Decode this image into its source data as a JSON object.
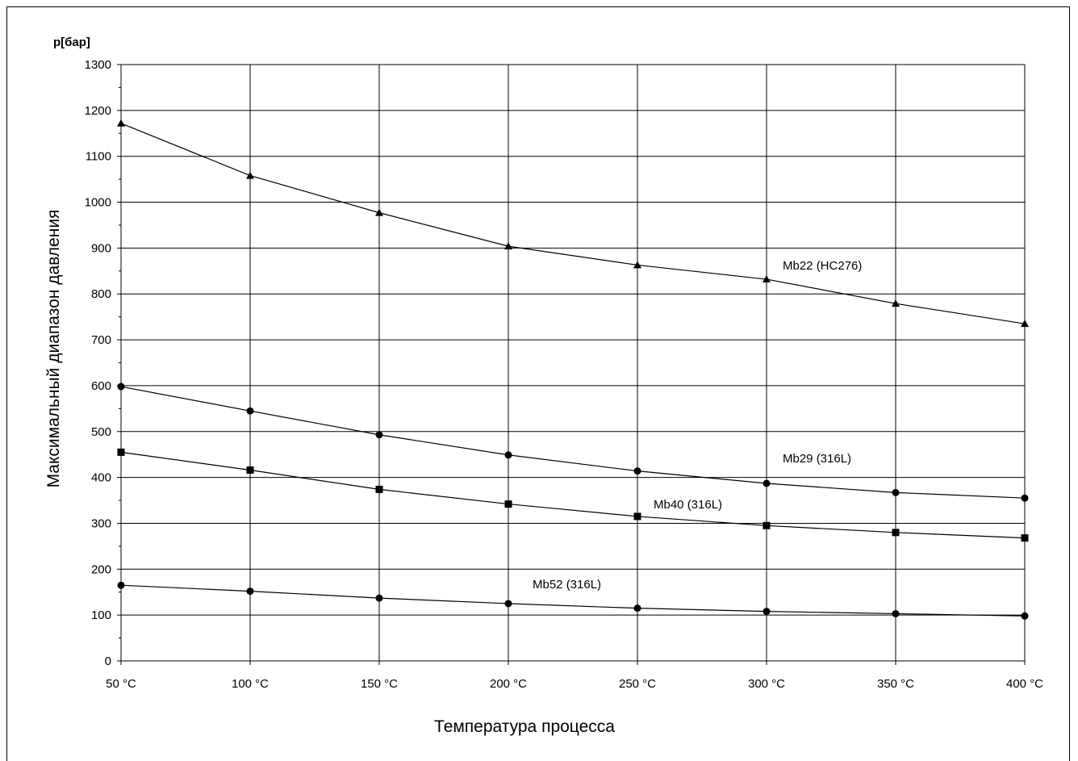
{
  "chart_data": {
    "type": "line",
    "y_unit_label": "p[бар]",
    "ylabel": "Максимальный диапазон давления",
    "xlabel": "Температура процесса",
    "x": [
      50,
      100,
      150,
      200,
      250,
      300,
      350,
      400
    ],
    "x_tick_labels": [
      "50 °C",
      "100 °C",
      "150 °C",
      "200 °C",
      "250 °C",
      "300 °C",
      "350 °C",
      "400 °C"
    ],
    "y_ticks": [
      0,
      100,
      200,
      300,
      400,
      500,
      600,
      700,
      800,
      900,
      1000,
      1100,
      1200,
      1300
    ],
    "xlim": [
      50,
      400
    ],
    "ylim": [
      0,
      1300
    ],
    "grid": true,
    "legend": "inline-labels",
    "series": [
      {
        "name": "Mb22 (HC276)",
        "marker": "triangle",
        "values": [
          1172,
          1058,
          977,
          904,
          863,
          832,
          779,
          735
        ]
      },
      {
        "name": "Mb29 (316L)",
        "marker": "circle",
        "values": [
          598,
          545,
          493,
          449,
          414,
          387,
          367,
          355
        ]
      },
      {
        "name": "Mb40 (316L)",
        "marker": "square",
        "values": [
          455,
          416,
          374,
          342,
          315,
          295,
          280,
          268
        ]
      },
      {
        "name": "Mb52 (316L)",
        "marker": "circle",
        "values": [
          165,
          152,
          137,
          125,
          115,
          108,
          103,
          98
        ]
      }
    ]
  }
}
